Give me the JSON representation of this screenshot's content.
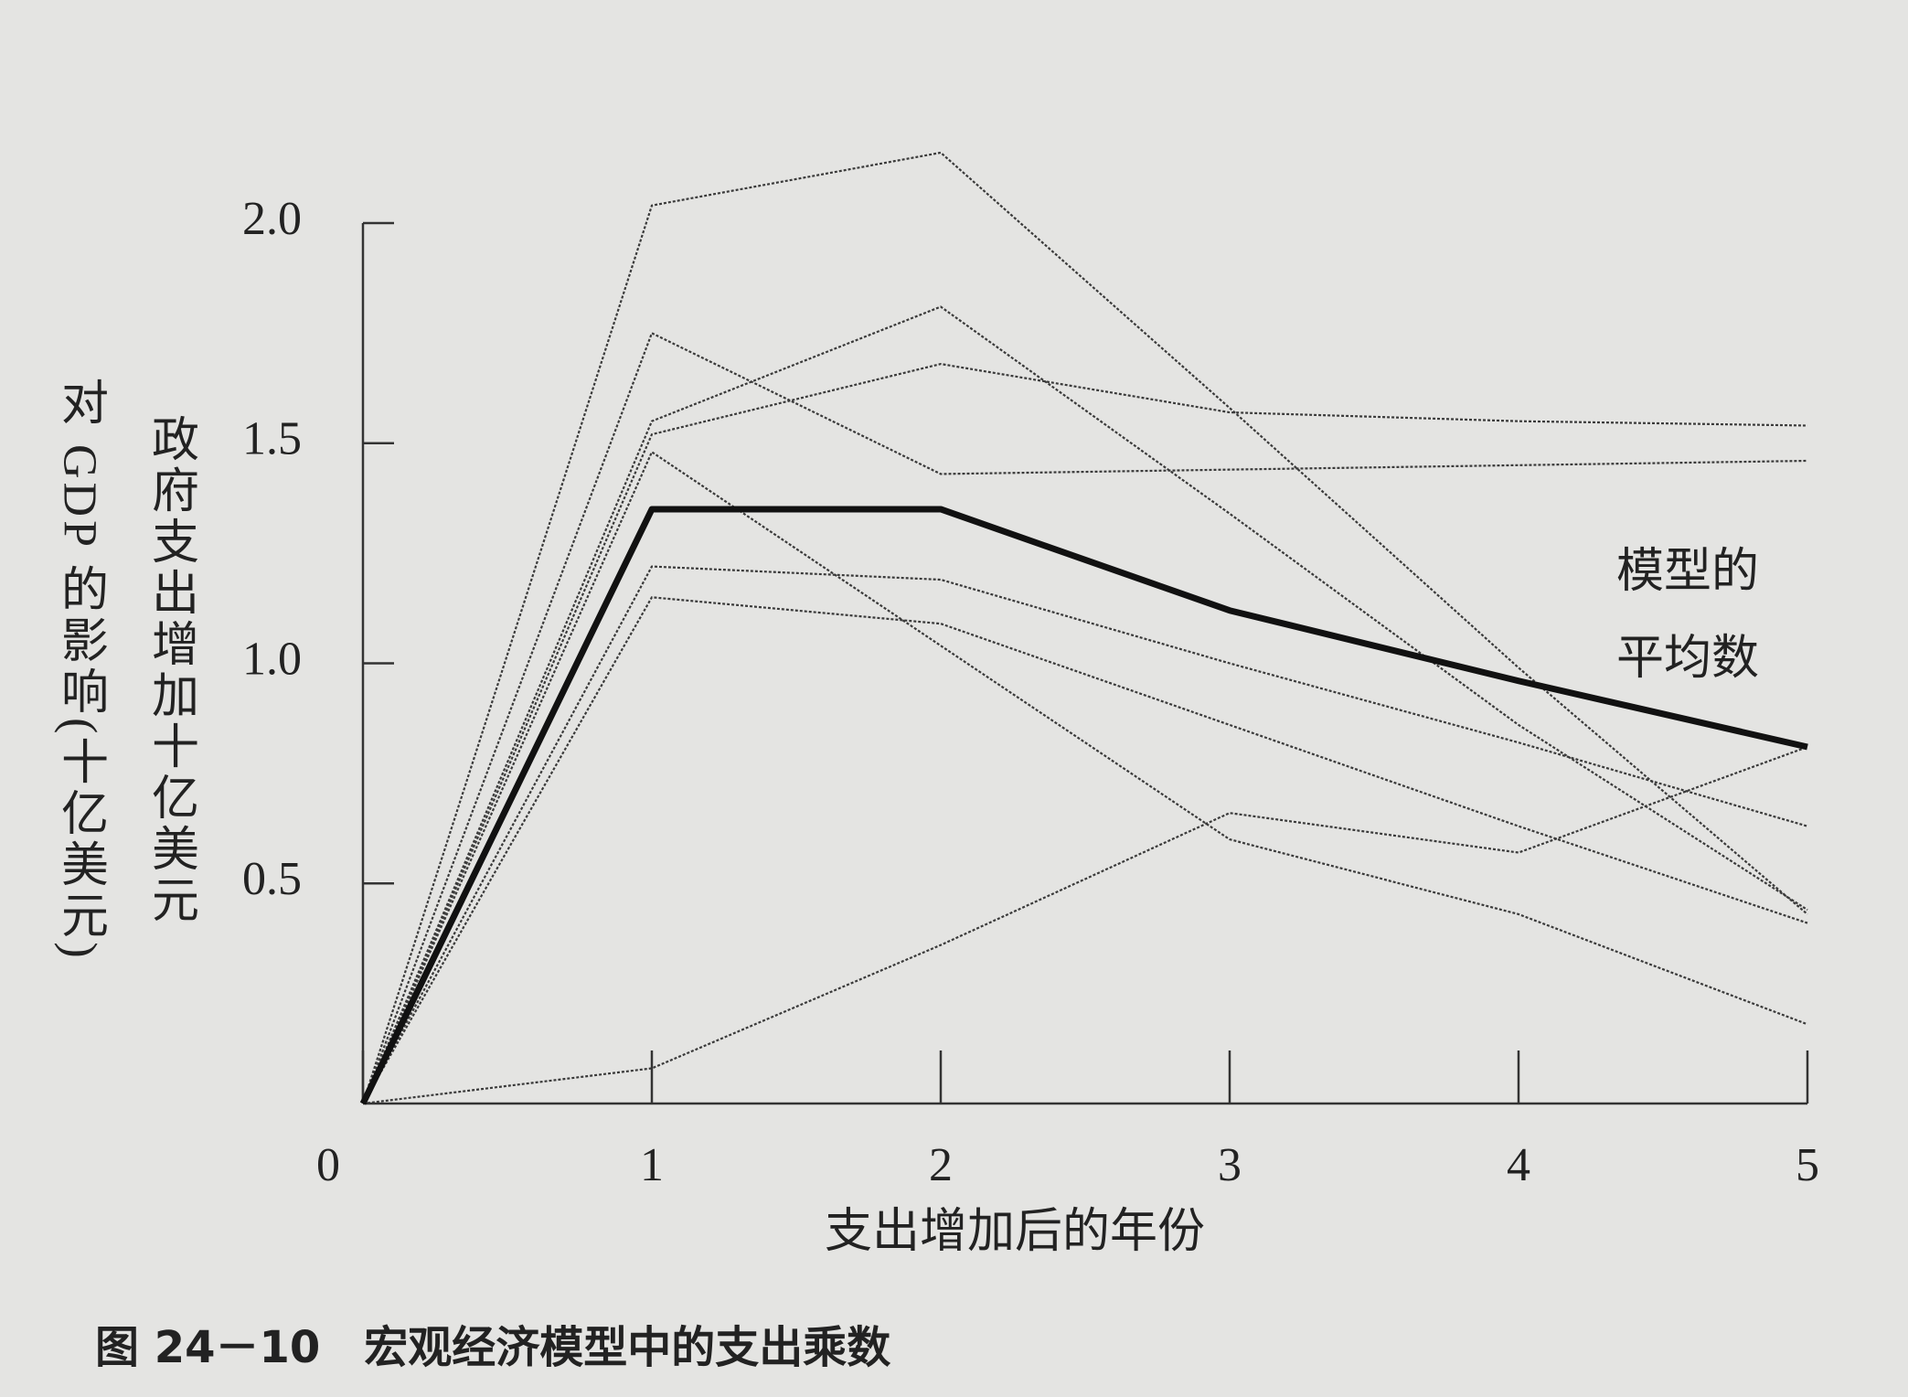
{
  "chart_data": {
    "type": "line",
    "caption": "图 24－10　宏观经济模型中的支出乘数",
    "xlabel": "支出增加后的年份",
    "ylabel": [
      "政府支出增加十亿美元",
      "对 GDP 的影响(十亿美元)"
    ],
    "annotation": [
      "模型的",
      "平均数"
    ],
    "x": [
      0,
      1,
      2,
      3,
      4,
      5
    ],
    "xlim": [
      0,
      5
    ],
    "xticks": [
      0,
      1,
      2,
      3,
      4,
      5
    ],
    "ylim": [
      0,
      2.0
    ],
    "yticks": [
      {
        "value": 0.5,
        "label": "0.5"
      },
      {
        "value": 1,
        "label": "1.0"
      },
      {
        "value": 1.5,
        "label": "1.5"
      },
      {
        "value": 2,
        "label": "2.0"
      }
    ],
    "grid": false,
    "series": [
      {
        "color": "#3a3a3a",
        "style": "dotted",
        "values": [
          0,
          2.04,
          2.16,
          1.58,
          0.99,
          0.43
        ]
      },
      {
        "color": "#3a3a3a",
        "style": "dotted",
        "values": [
          0,
          1.48,
          1.04,
          0.6,
          0.43,
          0.18
        ]
      },
      {
        "color": "#3a3a3a",
        "style": "dotted",
        "values": [
          0,
          1.55,
          1.81,
          1.34,
          0.86,
          0.44
        ]
      },
      {
        "color": "#3a3a3a",
        "style": "dotted",
        "values": [
          0,
          1.52,
          1.68,
          1.57,
          1.55,
          1.54
        ]
      },
      {
        "color": "#3a3a3a",
        "style": "dotted",
        "values": [
          0,
          1.75,
          1.43,
          1.44,
          1.45,
          1.46
        ]
      },
      {
        "color": "#3a3a3a",
        "style": "dotted",
        "values": [
          0,
          1.22,
          1.19,
          1.0,
          0.82,
          0.63
        ]
      },
      {
        "color": "#3a3a3a",
        "style": "dotted",
        "values": [
          0,
          1.15,
          1.09,
          0.86,
          0.63,
          0.41
        ]
      },
      {
        "color": "#3a3a3a",
        "style": "dotted",
        "values": [
          0,
          0.08,
          0.36,
          0.66,
          0.57,
          0.81
        ]
      },
      {
        "color": "#111111",
        "style": "solid",
        "values": [
          0,
          1.35,
          1.35,
          1.12,
          0.96,
          0.81
        ]
      }
    ]
  }
}
